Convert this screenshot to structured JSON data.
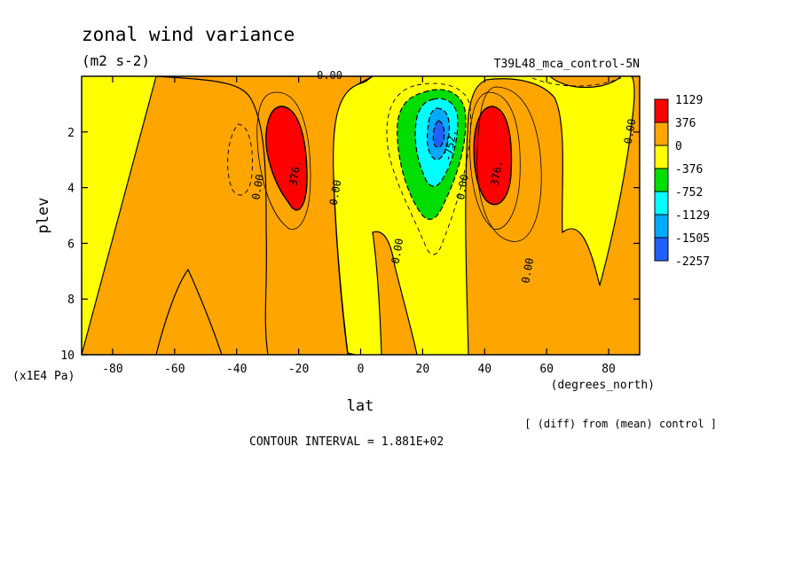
{
  "chart_data": {
    "type": "heatmap",
    "title": "zonal wind variance",
    "units": "(m2 s-2)",
    "experiment": "T39L48_mca_control-5N",
    "xlabel": "lat",
    "xunits": "(degrees_north)",
    "ylabel": "plev",
    "yunits": "(x1E4 Pa)",
    "xlim": [
      -90,
      90
    ],
    "ylim": [
      10,
      0
    ],
    "y_inverted": true,
    "xticks": [
      -80,
      -60,
      -40,
      -20,
      0,
      20,
      40,
      60,
      80
    ],
    "yticks": [
      2,
      4,
      6,
      8,
      10
    ],
    "note_diff": "[ (diff) from (mean) control ]",
    "contour_interval_text": "CONTOUR INTERVAL = 1.881E+02",
    "colorbar": {
      "labels": [
        "1129",
        "376",
        "0",
        "-376",
        "-752",
        "-1129",
        "-1505",
        "-2257"
      ],
      "colors": [
        "#ff0000",
        "#ffa500",
        "#ffff00",
        "#00dd00",
        "#00ffff",
        "#00aaff",
        "#2060ff"
      ]
    },
    "contour_labels": [
      {
        "text": "0.00",
        "lat": -10,
        "plev": 0.1
      },
      {
        "text": "0.00",
        "lat": -32,
        "plev": 4.0
      },
      {
        "text": "376.",
        "lat": -20,
        "plev": 3.5
      },
      {
        "text": "0.00",
        "lat": -7,
        "plev": 4.2
      },
      {
        "text": "0.00",
        "lat": 13,
        "plev": 6.3
      },
      {
        "text": "-752.",
        "lat": 30,
        "plev": 2.5
      },
      {
        "text": "0.00",
        "lat": 34,
        "plev": 4.0
      },
      {
        "text": "376.",
        "lat": 45,
        "plev": 3.5
      },
      {
        "text": "0.00",
        "lat": 88,
        "plev": 2.0
      },
      {
        "text": "0.00",
        "lat": 55,
        "plev": 7.0
      }
    ],
    "features": [
      {
        "sign": "positive",
        "peak_lat": -27,
        "peak_plev": 2.6,
        "peak_band": ">1129"
      },
      {
        "sign": "negative",
        "peak_lat": 24,
        "peak_plev": 2.2,
        "peak_band": "<-1505"
      },
      {
        "sign": "positive",
        "peak_lat": 40,
        "peak_plev": 2.6,
        "peak_band": ">1129"
      }
    ]
  }
}
